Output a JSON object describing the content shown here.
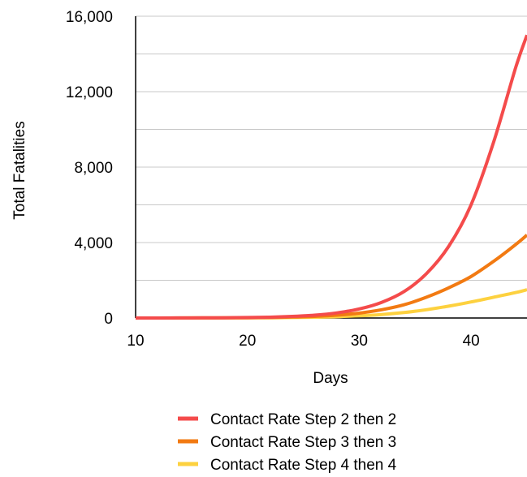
{
  "chart_data": {
    "type": "line",
    "title": "",
    "xlabel": "Days",
    "ylabel": "Total Fatalities",
    "xlim": [
      10,
      45
    ],
    "ylim": [
      0,
      16000
    ],
    "x_ticks": [
      10,
      20,
      30,
      40
    ],
    "x_tick_labels": [
      "10",
      "20",
      "30",
      "40"
    ],
    "y_ticks": [
      0,
      4000,
      8000,
      12000,
      16000
    ],
    "y_tick_labels": [
      "0",
      "4,000",
      "8,000",
      "12,000",
      "16,000"
    ],
    "grid": "horizontal",
    "legend_position": "bottom",
    "x": [
      10,
      12,
      14,
      16,
      18,
      20,
      22,
      24,
      26,
      28,
      30,
      32,
      34,
      36,
      38,
      40,
      42,
      44,
      45
    ],
    "series": [
      {
        "name": "Contact Rate Step 2 then 2",
        "color": "#f44b4b",
        "values": [
          0,
          2,
          4,
          8,
          14,
          25,
          45,
          85,
          150,
          270,
          480,
          830,
          1400,
          2350,
          3800,
          6000,
          9300,
          13300,
          15000
        ]
      },
      {
        "name": "Contact Rate Step 3 then 3",
        "color": "#f27a12",
        "values": [
          0,
          1,
          3,
          5,
          9,
          15,
          27,
          50,
          85,
          150,
          260,
          440,
          700,
          1100,
          1600,
          2200,
          3000,
          3900,
          4400
        ]
      },
      {
        "name": "Contact Rate Step 4 then 4",
        "color": "#fdd13f",
        "values": [
          0,
          1,
          2,
          3,
          5,
          8,
          14,
          25,
          42,
          70,
          115,
          185,
          290,
          440,
          630,
          850,
          1100,
          1350,
          1500
        ]
      }
    ]
  }
}
